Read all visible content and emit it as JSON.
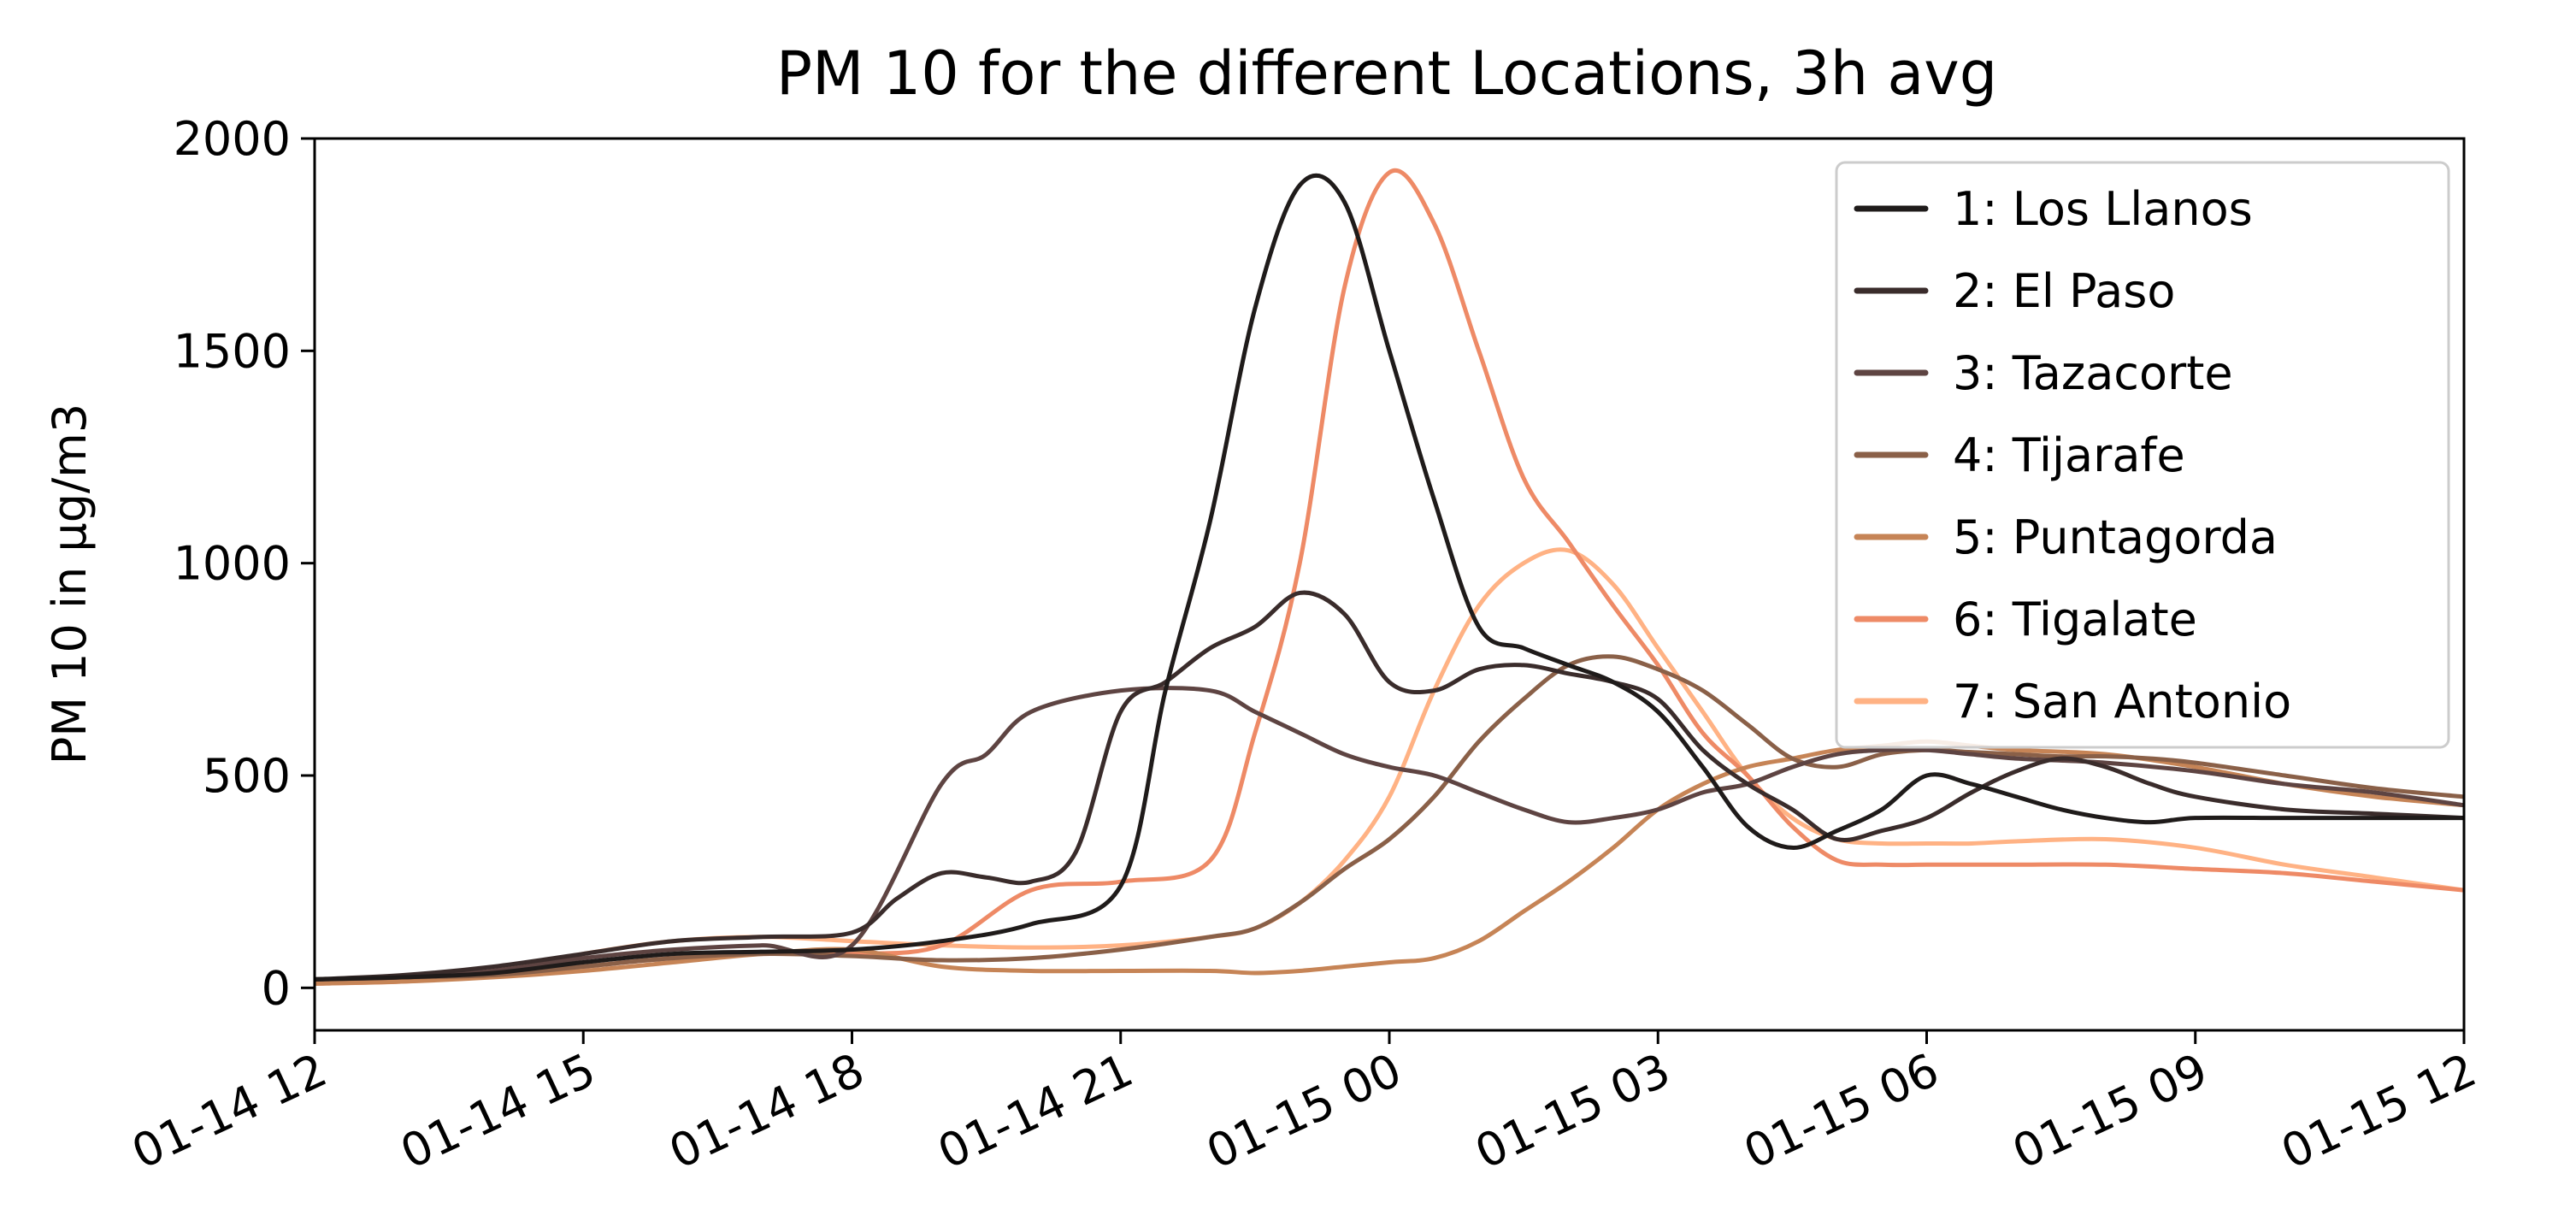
{
  "chart_data": {
    "type": "line",
    "title": "PM 10 for the different Locations, 3h avg",
    "xlabel": "",
    "ylabel": "PM 10 in μg/m3",
    "x_unit": "hours",
    "x_range": [
      0,
      24
    ],
    "x_ticks": [
      {
        "x": 0,
        "label": "01-14 12"
      },
      {
        "x": 3,
        "label": "01-14 15"
      },
      {
        "x": 6,
        "label": "01-14 18"
      },
      {
        "x": 9,
        "label": "01-14 21"
      },
      {
        "x": 12,
        "label": "01-15 00"
      },
      {
        "x": 15,
        "label": "01-15 03"
      },
      {
        "x": 18,
        "label": "01-15 06"
      },
      {
        "x": 21,
        "label": "01-15 09"
      },
      {
        "x": 24,
        "label": "01-15 12"
      }
    ],
    "ylim": [
      -100,
      2000
    ],
    "y_ticks": [
      0,
      500,
      1000,
      1500,
      2000
    ],
    "legend_position": "upper right",
    "series": [
      {
        "name": "1: Los Llanos",
        "color": "#1f1b1a",
        "x": [
          0,
          1,
          2,
          3,
          4,
          5,
          6,
          7,
          8,
          9,
          9.5,
          10,
          10.5,
          11,
          11.5,
          12,
          12.5,
          13,
          13.5,
          14,
          14.5,
          15,
          15.5,
          16,
          16.5,
          17,
          17.5,
          18,
          18.5,
          19,
          19.5,
          20,
          20.5,
          21,
          22,
          23,
          24
        ],
        "y": [
          20,
          25,
          35,
          60,
          80,
          85,
          90,
          110,
          150,
          240,
          700,
          1100,
          1600,
          1890,
          1850,
          1500,
          1150,
          850,
          800,
          760,
          720,
          650,
          520,
          380,
          330,
          370,
          420,
          500,
          480,
          450,
          420,
          400,
          390,
          400,
          400,
          400,
          400
        ]
      },
      {
        "name": "2: El Paso",
        "color": "#3a2c2b",
        "x": [
          0,
          1,
          2,
          3,
          4,
          5,
          6,
          6.5,
          7,
          7.5,
          8,
          8.5,
          9,
          9.5,
          10,
          10.5,
          11,
          11.5,
          12,
          12.5,
          13,
          13.5,
          14,
          14.5,
          15,
          15.5,
          16,
          16.5,
          17,
          17.5,
          18,
          18.5,
          19,
          19.5,
          20,
          20.5,
          21,
          22,
          23,
          24
        ],
        "y": [
          20,
          30,
          50,
          80,
          110,
          120,
          130,
          210,
          270,
          260,
          250,
          320,
          650,
          720,
          800,
          850,
          930,
          880,
          720,
          700,
          750,
          760,
          740,
          720,
          680,
          560,
          480,
          420,
          350,
          370,
          400,
          460,
          510,
          540,
          520,
          480,
          450,
          420,
          410,
          400
        ]
      },
      {
        "name": "3: Tazacorte",
        "color": "#5e4442",
        "x": [
          0,
          1,
          2,
          3,
          4,
          5,
          6,
          7,
          7.5,
          8,
          9,
          10,
          10.5,
          11,
          11.5,
          12,
          12.5,
          13,
          13.5,
          14,
          14.5,
          15,
          15.5,
          16,
          16.5,
          17,
          17.5,
          18,
          18.5,
          19,
          20,
          21,
          22,
          23,
          24
        ],
        "y": [
          20,
          25,
          40,
          70,
          90,
          100,
          100,
          480,
          550,
          650,
          700,
          700,
          650,
          600,
          550,
          520,
          500,
          460,
          420,
          390,
          400,
          420,
          460,
          480,
          520,
          550,
          560,
          560,
          550,
          540,
          530,
          510,
          480,
          460,
          430
        ]
      },
      {
        "name": "4: Tijarafe",
        "color": "#8a6048",
        "x": [
          0,
          1,
          2,
          3,
          4,
          5,
          6,
          7,
          8,
          9,
          10,
          10.5,
          11,
          11.5,
          12,
          12.5,
          13,
          13.5,
          14,
          14.5,
          15,
          15.5,
          16,
          16.5,
          17,
          17.5,
          18,
          18.5,
          19,
          19.5,
          20,
          20.5,
          21,
          22,
          23,
          24
        ],
        "y": [
          20,
          25,
          30,
          50,
          70,
          80,
          75,
          65,
          70,
          90,
          120,
          140,
          200,
          280,
          350,
          450,
          580,
          680,
          760,
          780,
          750,
          700,
          620,
          540,
          520,
          550,
          560,
          555,
          550,
          545,
          545,
          540,
          530,
          500,
          470,
          450
        ]
      },
      {
        "name": "5: Puntagorda",
        "color": "#c68456",
        "x": [
          0,
          1,
          2,
          3,
          4,
          5,
          6,
          7,
          8,
          9,
          10,
          10.5,
          11,
          11.5,
          12,
          12.5,
          13,
          13.5,
          14,
          14.5,
          15,
          15.5,
          16,
          16.5,
          17,
          17.5,
          18,
          18.5,
          19,
          20,
          21,
          22,
          23,
          24
        ],
        "y": [
          10,
          15,
          25,
          40,
          60,
          80,
          90,
          50,
          40,
          40,
          40,
          35,
          40,
          50,
          60,
          70,
          110,
          180,
          250,
          330,
          420,
          480,
          520,
          540,
          560,
          570,
          580,
          570,
          560,
          550,
          520,
          480,
          450,
          430
        ]
      },
      {
        "name": "6: Tigalate",
        "color": "#ee8a66",
        "x": [
          0,
          1,
          2,
          3,
          4,
          5,
          6,
          7,
          8,
          9,
          10,
          10.5,
          11,
          11.5,
          12,
          12.5,
          13,
          13.5,
          14,
          14.5,
          15,
          15.5,
          16,
          16.5,
          17,
          17.5,
          18,
          18.5,
          19,
          20,
          21,
          22,
          23,
          24
        ],
        "y": [
          10,
          15,
          30,
          50,
          70,
          80,
          80,
          100,
          230,
          250,
          300,
          600,
          1000,
          1650,
          1920,
          1800,
          1500,
          1200,
          1050,
          900,
          760,
          600,
          500,
          380,
          300,
          290,
          290,
          290,
          290,
          290,
          280,
          270,
          250,
          230
        ]
      },
      {
        "name": "7: San Antonio",
        "color": "#ffb284",
        "x": [
          0,
          1,
          2,
          3,
          4,
          5,
          6,
          7,
          8,
          9,
          10,
          10.5,
          11,
          11.5,
          12,
          12.5,
          13,
          13.5,
          14,
          14.5,
          15,
          15.5,
          16,
          16.5,
          17,
          17.5,
          18,
          18.5,
          19,
          20,
          21,
          22,
          23,
          24
        ],
        "y": [
          15,
          20,
          40,
          80,
          110,
          120,
          110,
          100,
          95,
          100,
          120,
          140,
          200,
          300,
          450,
          700,
          900,
          1000,
          1030,
          950,
          800,
          650,
          500,
          400,
          350,
          340,
          340,
          340,
          345,
          350,
          330,
          290,
          260,
          230
        ]
      }
    ]
  }
}
